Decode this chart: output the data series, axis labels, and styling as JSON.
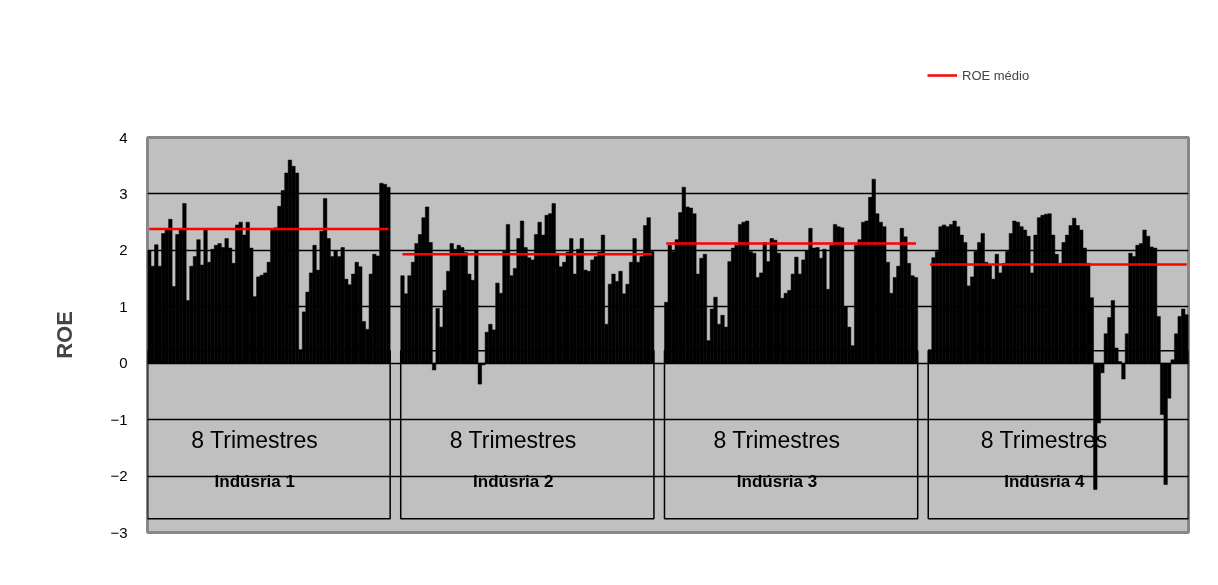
{
  "chart_data": {
    "type": "bar",
    "ylabel": "ROE",
    "categories": [
      null,
      null,
      null,
      null,
      null,
      null,
      null,
      null,
      null,
      null,
      null,
      null,
      null,
      null,
      null,
      null,
      null,
      null,
      null,
      null,
      null,
      null,
      null,
      null,
      null,
      null,
      null,
      null,
      null,
      null,
      null,
      null,
      null,
      null,
      null,
      null,
      null,
      null,
      null,
      null,
      null,
      null,
      null,
      null,
      null,
      null,
      null,
      null,
      null,
      null,
      null,
      null,
      null,
      null,
      null,
      null,
      null,
      null,
      null,
      null,
      null,
      null,
      null,
      null,
      null,
      null,
      null,
      null,
      null,
      null,
      null,
      null,
      null,
      null,
      null,
      null,
      null,
      null,
      null,
      null,
      null,
      null,
      null,
      null,
      null,
      null,
      null,
      null,
      null,
      null,
      null,
      null,
      null,
      null,
      null,
      null,
      null,
      null,
      null,
      null,
      null,
      null,
      null,
      null,
      null,
      null,
      null,
      null,
      null,
      null,
      null,
      null,
      null,
      null,
      null,
      null,
      null,
      null,
      null,
      null,
      null,
      null,
      null,
      null,
      null,
      null,
      null,
      null,
      null,
      null,
      null,
      null,
      null,
      null,
      null,
      null,
      null,
      null,
      null,
      null,
      null,
      null,
      null,
      null,
      null,
      null,
      null,
      null,
      null,
      null,
      null,
      null,
      null,
      null,
      null,
      null,
      null,
      null,
      null,
      null,
      null,
      null,
      null,
      null,
      null,
      null,
      null,
      null,
      null,
      null,
      null,
      null,
      null,
      null,
      null,
      null,
      null,
      null,
      null,
      null,
      null,
      null,
      null,
      null,
      null,
      null,
      null,
      null,
      null,
      null,
      null,
      null,
      null,
      null,
      null,
      null,
      null,
      null,
      null,
      null,
      null,
      null,
      null,
      null,
      null,
      null,
      null,
      null,
      null,
      null,
      null,
      null,
      null,
      null,
      null,
      null,
      null,
      null,
      null,
      null,
      null,
      null,
      null,
      null,
      null,
      null,
      null,
      null,
      null,
      null,
      null,
      null,
      null,
      null,
      null,
      null,
      null,
      null,
      null,
      null,
      null,
      null,
      null,
      null,
      null,
      null,
      null,
      null,
      null,
      null,
      null,
      null,
      null,
      null,
      null,
      null,
      null,
      null,
      null,
      null,
      null,
      null,
      null,
      null,
      null,
      null,
      null,
      null,
      null,
      null,
      null,
      null,
      null,
      null,
      null,
      null,
      null,
      null,
      null,
      null,
      null,
      null,
      null,
      null,
      null,
      null,
      null,
      null,
      null,
      null,
      null,
      null,
      null,
      null,
      null,
      null
    ],
    "series": [
      {
        "color": "#000000",
        "values": [
          1.99,
          1.72,
          2.1,
          1.72,
          2.3,
          2.37,
          2.55,
          1.36,
          2.28,
          2.36,
          2.83,
          1.11,
          1.72,
          1.89,
          2.19,
          1.74,
          2.36,
          1.79,
          2.02,
          2.09,
          2.12,
          2.05,
          2.21,
          2.04,
          1.77,
          2.45,
          2.5,
          2.27,
          2.5,
          2.04,
          1.18,
          1.53,
          1.56,
          1.6,
          1.79,
          2.36,
          2.4,
          2.78,
          3.06,
          3.37,
          3.6,
          3.49,
          3.37,
          0.24,
          0.91,
          1.26,
          1.6,
          2.09,
          1.65,
          2.34,
          2.92,
          2.21,
          1.89,
          1.99,
          1.89,
          2.05,
          1.49,
          1.39,
          1.58,
          1.79,
          1.71,
          0.74,
          0.6,
          1.58,
          1.93,
          1.9,
          3.19,
          3.17,
          3.12,
          null,
          null,
          null,
          1.55,
          1.23,
          1.55,
          1.79,
          2.12,
          2.28,
          2.58,
          2.77,
          2.14,
          -0.12,
          0.97,
          0.64,
          1.29,
          1.63,
          2.12,
          2.02,
          2.09,
          2.05,
          1.96,
          1.58,
          1.47,
          1.99,
          -0.37,
          -0.03,
          0.55,
          0.69,
          0.59,
          1.42,
          1.24,
          1.98,
          2.46,
          1.55,
          1.68,
          2.21,
          2.52,
          2.05,
          1.87,
          1.83,
          2.28,
          2.5,
          2.27,
          2.62,
          2.65,
          2.83,
          1.95,
          1.71,
          1.79,
          1.97,
          2.21,
          1.58,
          2.02,
          2.21,
          1.65,
          1.63,
          1.83,
          1.89,
          1.97,
          2.27,
          0.69,
          1.4,
          1.58,
          1.45,
          1.63,
          1.23,
          1.4,
          1.79,
          2.21,
          1.79,
          1.89,
          2.44,
          2.58,
          1.98,
          null,
          null,
          null,
          1.08,
          2.09,
          1.98,
          2.19,
          2.67,
          3.12,
          2.77,
          2.75,
          2.65,
          1.58,
          1.86,
          1.93,
          0.4,
          0.96,
          1.17,
          0.69,
          0.85,
          0.64,
          1.8,
          2.04,
          2.09,
          2.46,
          2.5,
          2.52,
          1.98,
          1.95,
          1.52,
          1.6,
          2.14,
          1.8,
          2.21,
          2.18,
          1.95,
          1.15,
          1.24,
          1.29,
          1.58,
          1.88,
          1.58,
          1.83,
          1.99,
          2.39,
          2.04,
          2.05,
          1.86,
          2.02,
          1.31,
          2.09,
          2.46,
          2.42,
          2.4,
          1.0,
          0.64,
          0.31,
          2.09,
          2.19,
          2.5,
          2.52,
          2.94,
          3.26,
          2.65,
          2.5,
          2.42,
          1.79,
          1.24,
          1.52,
          1.72,
          2.39,
          2.24,
          1.77,
          1.55,
          1.52,
          null,
          null,
          null,
          0.24,
          1.87,
          1.98,
          2.42,
          2.45,
          2.42,
          2.46,
          2.52,
          2.42,
          2.27,
          2.14,
          1.37,
          1.53,
          1.98,
          2.14,
          2.3,
          1.79,
          1.74,
          1.49,
          1.93,
          1.6,
          1.77,
          1.98,
          2.3,
          2.52,
          2.5,
          2.42,
          2.36,
          2.25,
          1.6,
          2.27,
          2.58,
          2.62,
          2.64,
          2.65,
          2.27,
          1.93,
          1.77,
          2.14,
          2.27,
          2.44,
          2.57,
          2.44,
          2.36,
          2.04,
          1.77,
          1.16,
          -2.24,
          -1.06,
          -0.17,
          0.52,
          0.81,
          1.11,
          0.27,
          0.03,
          -0.28,
          0.52,
          1.95,
          1.89,
          2.09,
          2.12,
          2.36,
          2.25,
          2.06,
          2.04,
          0.83,
          -0.91,
          -2.15,
          -0.62,
          0.06,
          0.52,
          0.83,
          0.96,
          0.86
        ]
      },
      {
        "name": "ROE médio",
        "type": "line",
        "color": "#ff0000",
        "values": [
          2.38,
          2.38,
          2.38,
          2.38,
          2.38,
          2.38,
          2.38,
          2.38,
          2.38,
          2.38,
          2.38,
          2.38,
          2.38,
          2.38,
          2.38,
          2.38,
          2.38,
          2.38,
          2.38,
          2.38,
          2.38,
          2.38,
          2.38,
          2.38,
          2.38,
          2.38,
          2.38,
          2.38,
          2.38,
          2.38,
          2.38,
          2.38,
          2.38,
          2.38,
          2.38,
          2.38,
          2.38,
          2.38,
          2.38,
          2.38,
          2.38,
          2.38,
          2.38,
          2.38,
          2.38,
          2.38,
          2.38,
          2.38,
          2.38,
          2.38,
          2.38,
          2.38,
          2.38,
          2.38,
          2.38,
          2.38,
          2.38,
          2.38,
          2.38,
          2.38,
          2.38,
          2.38,
          2.38,
          2.38,
          2.38,
          2.38,
          2.38,
          2.38,
          2.38,
          null,
          null,
          null,
          1.93,
          1.93,
          1.93,
          1.93,
          1.93,
          1.93,
          1.93,
          1.93,
          1.93,
          1.93,
          1.93,
          1.93,
          1.93,
          1.93,
          1.93,
          1.93,
          1.93,
          1.93,
          1.93,
          1.93,
          1.93,
          1.93,
          1.93,
          1.93,
          1.93,
          1.93,
          1.93,
          1.93,
          1.93,
          1.93,
          1.93,
          1.93,
          1.93,
          1.93,
          1.93,
          1.93,
          1.93,
          1.93,
          1.93,
          1.93,
          1.93,
          1.93,
          1.93,
          1.93,
          1.93,
          1.93,
          1.93,
          1.93,
          1.93,
          1.93,
          1.93,
          1.93,
          1.93,
          1.93,
          1.93,
          1.93,
          1.93,
          1.93,
          1.93,
          1.93,
          1.93,
          1.93,
          1.93,
          1.93,
          1.93,
          1.93,
          1.93,
          1.93,
          1.93,
          1.93,
          1.93,
          1.93,
          null,
          null,
          null,
          2.12,
          2.12,
          2.12,
          2.12,
          2.12,
          2.12,
          2.12,
          2.12,
          2.12,
          2.12,
          2.12,
          2.12,
          2.12,
          2.12,
          2.12,
          2.12,
          2.12,
          2.12,
          2.12,
          2.12,
          2.12,
          2.12,
          2.12,
          2.12,
          2.12,
          2.12,
          2.12,
          2.12,
          2.12,
          2.12,
          2.12,
          2.12,
          2.12,
          2.12,
          2.12,
          2.12,
          2.12,
          2.12,
          2.12,
          2.12,
          2.12,
          2.12,
          2.12,
          2.12,
          2.12,
          2.12,
          2.12,
          2.12,
          2.12,
          2.12,
          2.12,
          2.12,
          2.12,
          2.12,
          2.12,
          2.12,
          2.12,
          2.12,
          2.12,
          2.12,
          2.12,
          2.12,
          2.12,
          2.12,
          2.12,
          2.12,
          2.12,
          2.12,
          2.12,
          2.12,
          2.12,
          2.12,
          null,
          null,
          null,
          1.75,
          1.75,
          1.75,
          1.75,
          1.75,
          1.75,
          1.75,
          1.75,
          1.75,
          1.75,
          1.75,
          1.75,
          1.75,
          1.75,
          1.75,
          1.75,
          1.75,
          1.75,
          1.75,
          1.75,
          1.75,
          1.75,
          1.75,
          1.75,
          1.75,
          1.75,
          1.75,
          1.75,
          1.75,
          1.75,
          1.75,
          1.75,
          1.75,
          1.75,
          1.75,
          1.75,
          1.75,
          1.75,
          1.75,
          1.75,
          1.75,
          1.75,
          1.75,
          1.75,
          1.75,
          1.75,
          1.75,
          1.75,
          1.75,
          1.75,
          1.75,
          1.75,
          1.75,
          1.75,
          1.75,
          1.75,
          1.75,
          1.75,
          1.75,
          1.75,
          1.75,
          1.75,
          1.75,
          1.75,
          1.75,
          1.75,
          1.75,
          1.75,
          1.75,
          1.75,
          1.75,
          1.75,
          1.75,
          1.75
        ]
      }
    ],
    "ylim": [
      -3,
      4
    ],
    "yticks": [
      -3,
      -2,
      -1,
      0,
      1,
      2,
      3,
      4
    ],
    "grid": "y",
    "legend": "top right",
    "tick_labels": "y",
    "annotations": [
      "8 Trimestres",
      "Indúsria 1",
      "8 Trimestres",
      "Indúsria 2",
      "8 Trimestres",
      "Indúsria 3",
      "8 Trimestres",
      "Indúsria 4"
    ]
  }
}
